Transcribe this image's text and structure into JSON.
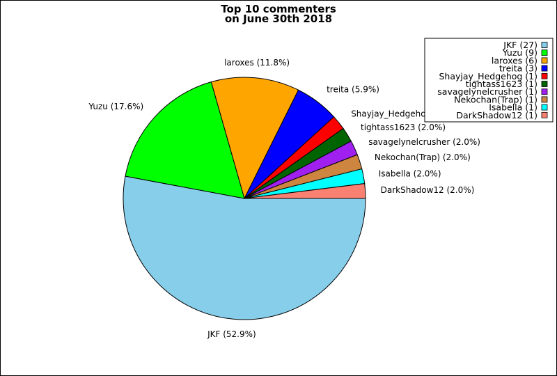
{
  "chart_data": {
    "type": "pie",
    "title_lines": [
      "Top 10 commenters",
      "on June 30th 2018"
    ],
    "slices": [
      {
        "name": "JKF",
        "count": 27,
        "percent": 52.9,
        "color": "#87CEEB",
        "legend": "JKF (27)",
        "label": "JKF (52.9%)"
      },
      {
        "name": "Yuzu",
        "count": 9,
        "percent": 17.6,
        "color": "#00FF00",
        "legend": "Yuzu (9)",
        "label": "Yuzu (17.6%)"
      },
      {
        "name": "laroxes",
        "count": 6,
        "percent": 11.8,
        "color": "#FFA500",
        "legend": "laroxes (6)",
        "label": "laroxes (11.8%)"
      },
      {
        "name": "treita",
        "count": 3,
        "percent": 5.9,
        "color": "#0000FF",
        "legend": "treita (3)",
        "label": "treita (5.9%)"
      },
      {
        "name": "Shayjay_Hedgehog",
        "count": 1,
        "percent": 2.0,
        "color": "#FF0000",
        "legend": "Shayjay_Hedgehog (1)",
        "label": "Shayjay_Hedgehog (2.0%)"
      },
      {
        "name": "tightass1623",
        "count": 1,
        "percent": 2.0,
        "color": "#006400",
        "legend": "tightass1623 (1)",
        "label": "tightass1623 (2.0%)"
      },
      {
        "name": "savagelynelcrusher",
        "count": 1,
        "percent": 2.0,
        "color": "#A020F0",
        "legend": "savagelynelcrusher (1)",
        "label": "savagelynelcrusher (2.0%)"
      },
      {
        "name": "Nekochan(Trap)",
        "count": 1,
        "percent": 2.0,
        "color": "#CD853F",
        "legend": "Nekochan(Trap) (1)",
        "label": "Nekochan(Trap) (2.0%)"
      },
      {
        "name": "Isabella",
        "count": 1,
        "percent": 2.0,
        "color": "#00FFFF",
        "legend": "Isabella (1)",
        "label": "Isabella (2.0%)"
      },
      {
        "name": "DarkShadow12",
        "count": 1,
        "percent": 2.0,
        "color": "#FA8072",
        "legend": "DarkShadow12 (1)",
        "label": "DarkShadow12 (2.0%)"
      }
    ],
    "legend_position": "top-right",
    "start_angle_deg": 0,
    "direction": "clockwise"
  }
}
